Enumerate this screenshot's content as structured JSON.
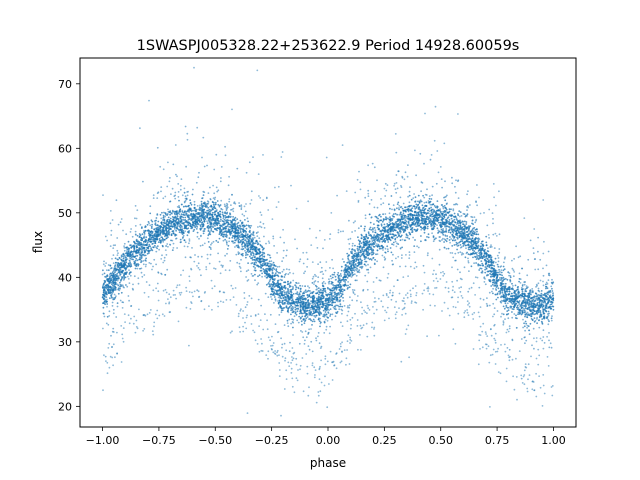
{
  "chart_data": {
    "type": "scatter",
    "title": "1SWASPJ005328.22+253622.9 Period 14928.60059s",
    "xlabel": "phase",
    "ylabel": "flux",
    "xlim": [
      -1.1,
      1.1
    ],
    "ylim": [
      16.8,
      74.0
    ],
    "x_ticks": [
      -1.0,
      -0.75,
      -0.5,
      -0.25,
      0.0,
      0.25,
      0.5,
      0.75,
      1.0
    ],
    "x_tick_labels": [
      "−1.00",
      "−0.75",
      "−0.50",
      "−0.25",
      "0.00",
      "0.25",
      "0.50",
      "0.75",
      "1.00"
    ],
    "y_ticks": [
      20,
      30,
      40,
      50,
      60,
      70
    ],
    "y_tick_labels": [
      "20",
      "30",
      "40",
      "50",
      "60",
      "70"
    ],
    "grid": false,
    "point_color": "#1f77b4",
    "series": [
      {
        "x": [
          -1.0,
          -0.95,
          -0.9,
          -0.85,
          -0.8,
          -0.75,
          -0.7,
          -0.65,
          -0.6,
          -0.55,
          -0.5,
          -0.45,
          -0.4,
          -0.35,
          -0.3,
          -0.25,
          -0.2,
          -0.15,
          -0.1,
          -0.05,
          0.0,
          0.05,
          0.1,
          0.15,
          0.2,
          0.25,
          0.3,
          0.35,
          0.4,
          0.45,
          0.5,
          0.55,
          0.6,
          0.65,
          0.7,
          0.75,
          0.8,
          0.85,
          0.9,
          0.95,
          1.0
        ],
        "y": [
          37.5,
          39.5,
          42.0,
          44.0,
          45.6,
          47.0,
          48.1,
          48.9,
          49.3,
          49.3,
          48.9,
          48.0,
          46.8,
          45.2,
          42.8,
          39.8,
          37.2,
          36.0,
          35.6,
          35.8,
          36.5,
          38.2,
          41.5,
          44.0,
          45.6,
          47.0,
          48.1,
          48.9,
          49.3,
          49.3,
          48.9,
          48.0,
          46.8,
          45.2,
          42.8,
          39.8,
          37.2,
          36.0,
          35.7,
          35.7,
          36.5
        ]
      }
    ]
  }
}
